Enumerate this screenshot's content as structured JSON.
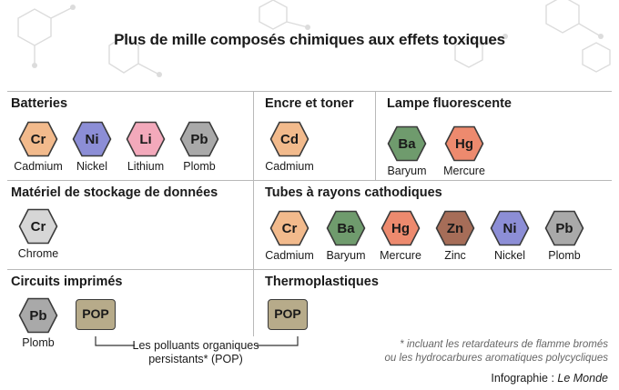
{
  "title": "Plus de mille composés chimiques aux effets toxiques",
  "colors": {
    "Cr": "#f2ba8c",
    "Ni": "#8c8ed6",
    "Li": "#f3a9bb",
    "Pb": "#a9a9a9",
    "Cd": "#f2ba8c",
    "Ba": "#6f9b6d",
    "Hg": "#ed8a6e",
    "Zn": "#a66d58",
    "Cr_grey": "#d6d6d6",
    "pop": "#b7ab8a"
  },
  "sections": {
    "batteries": {
      "title": "Batteries",
      "items": [
        {
          "symbol": "Cr",
          "name": "Cadmium"
        },
        {
          "symbol": "Ni",
          "name": "Nickel"
        },
        {
          "symbol": "Li",
          "name": "Lithium"
        },
        {
          "symbol": "Pb",
          "name": "Plomb"
        }
      ]
    },
    "encre": {
      "title": "Encre et toner",
      "items": [
        {
          "symbol": "Cd",
          "name": "Cadmium"
        }
      ]
    },
    "lampe": {
      "title": "Lampe fluorescente",
      "items": [
        {
          "symbol": "Ba",
          "name": "Baryum"
        },
        {
          "symbol": "Hg",
          "name": "Mercure"
        }
      ]
    },
    "stockage": {
      "title": "Matériel de stockage de données",
      "items": [
        {
          "symbol": "Cr",
          "name": "Chrome"
        }
      ]
    },
    "tubes": {
      "title": "Tubes à rayons cathodiques",
      "items": [
        {
          "symbol": "Cr",
          "name": "Cadmium"
        },
        {
          "symbol": "Ba",
          "name": "Baryum"
        },
        {
          "symbol": "Hg",
          "name": "Mercure"
        },
        {
          "symbol": "Zn",
          "name": "Zinc"
        },
        {
          "symbol": "Ni",
          "name": "Nickel"
        },
        {
          "symbol": "Pb",
          "name": "Plomb"
        }
      ]
    },
    "circuits": {
      "title": "Circuits imprimés",
      "items": [
        {
          "symbol": "Pb",
          "name": "Plomb"
        }
      ],
      "pop": "POP"
    },
    "thermo": {
      "title": "Thermoplastiques",
      "pop": "POP"
    }
  },
  "pop_label": "Les polluants organiques persistants* (POP)",
  "footnote_line1": "* incluant les retardateurs de flamme bromés",
  "footnote_line2": "ou les hydrocarbures aromatiques polycycliques",
  "credit_prefix": "Infographie : ",
  "credit_source": "Le Monde"
}
